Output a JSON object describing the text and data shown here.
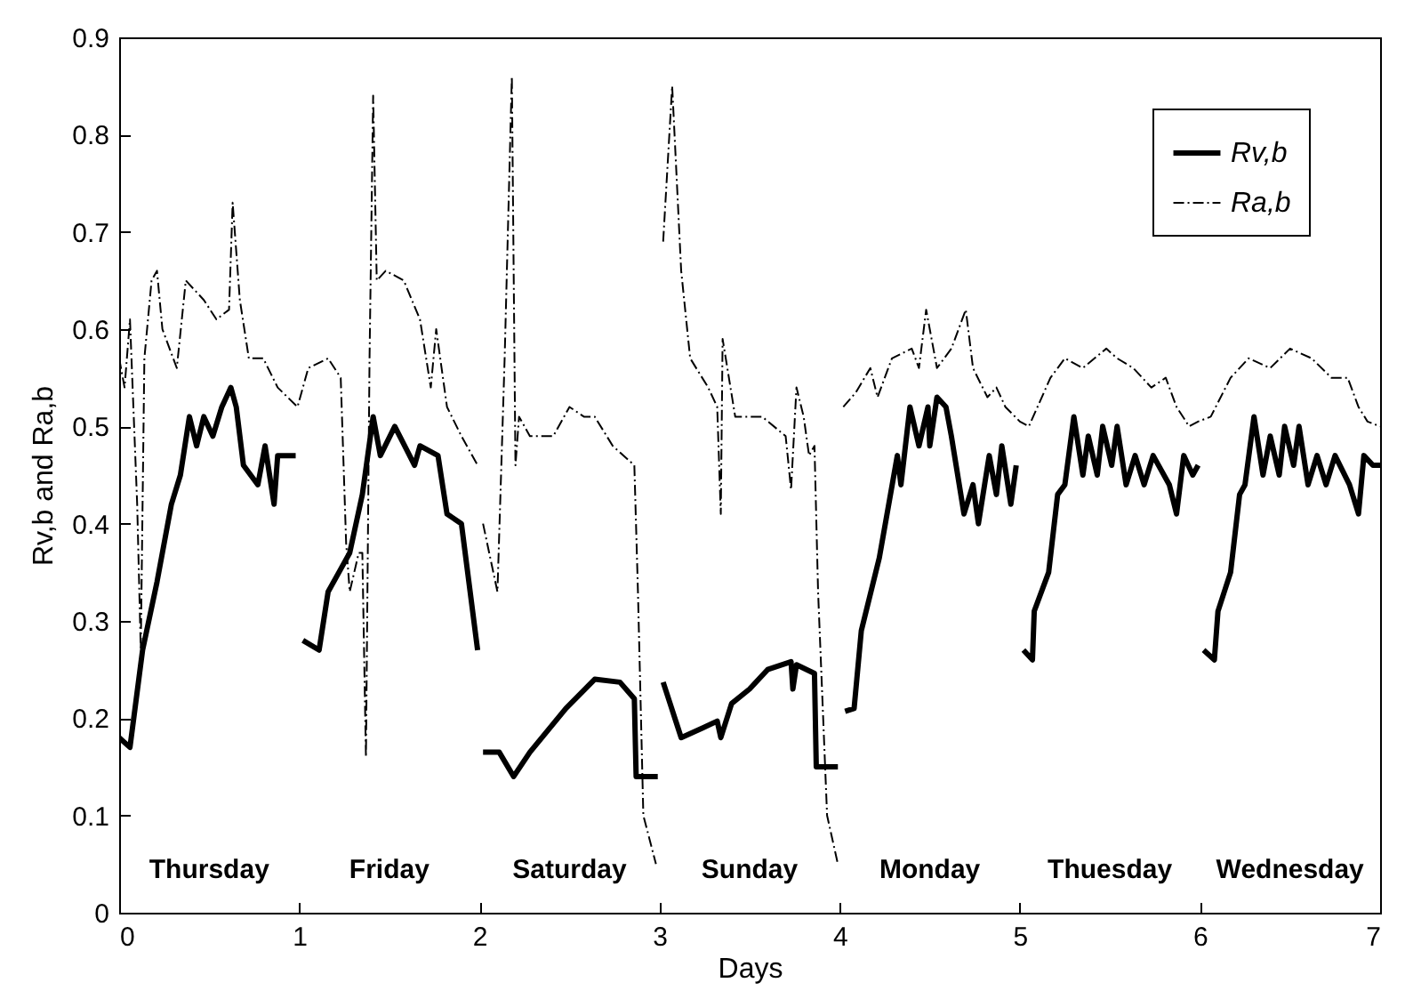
{
  "chart_data": {
    "type": "line",
    "xlabel": "Days",
    "ylabel": "Rv,b and Ra,b",
    "xlim": [
      0,
      7
    ],
    "ylim": [
      0,
      0.9
    ],
    "xticks": [
      0,
      1,
      2,
      3,
      4,
      5,
      6,
      7
    ],
    "yticks": [
      0,
      0.1,
      0.2,
      0.3,
      0.4,
      0.5,
      0.6,
      0.7,
      0.8,
      0.9
    ],
    "grid": false,
    "legend": "top right",
    "marker": "none",
    "annotations": [
      "Thursday",
      "Friday",
      "Saturday",
      "Sunday",
      "Monday",
      "Thuesday",
      "Wednesday"
    ],
    "series": [
      {
        "name": "Rv,b",
        "color": "#000000",
        "line_style": "solid",
        "x": [
          0,
          0.06,
          0.13,
          0.21,
          0.29,
          0.34,
          0.39,
          0.43,
          0.47,
          0.52,
          0.57,
          0.62,
          0.65,
          0.69,
          0.77,
          0.81,
          0.86,
          0.88,
          0.98,
          1.0,
          1.02,
          1.11,
          1.16,
          1.22,
          1.28,
          1.35,
          1.41,
          1.45,
          1.53,
          1.64,
          1.67,
          1.77,
          1.82,
          1.9,
          1.99,
          2.0,
          2.02,
          2.11,
          2.19,
          2.28,
          2.48,
          2.64,
          2.78,
          2.86,
          2.87,
          2.99,
          3.0,
          3.02,
          3.12,
          3.24,
          3.32,
          3.34,
          3.4,
          3.5,
          3.6,
          3.73,
          3.74,
          3.76,
          3.86,
          3.87,
          3.99,
          4.0,
          4.03,
          4.08,
          4.12,
          4.22,
          4.32,
          4.34,
          4.39,
          4.44,
          4.49,
          4.5,
          4.54,
          4.59,
          4.62,
          4.69,
          4.74,
          4.77,
          4.83,
          4.87,
          4.9,
          4.95,
          4.98,
          5.0,
          5.02,
          5.07,
          5.08,
          5.16,
          5.21,
          5.25,
          5.3,
          5.35,
          5.38,
          5.43,
          5.46,
          5.51,
          5.54,
          5.59,
          5.64,
          5.69,
          5.74,
          5.83,
          5.87,
          5.91,
          5.96,
          5.99,
          6.0,
          6.02,
          6.08,
          6.1,
          6.17,
          6.22,
          6.25,
          6.3,
          6.35,
          6.39,
          6.44,
          6.47,
          6.52,
          6.55,
          6.6,
          6.65,
          6.7,
          6.75,
          6.83,
          6.88,
          6.91,
          6.96,
          7.0
        ],
        "values": [
          0.18,
          0.17,
          0.27,
          0.34,
          0.42,
          0.45,
          0.51,
          0.48,
          0.51,
          0.49,
          0.52,
          0.54,
          0.52,
          0.46,
          0.44,
          0.48,
          0.42,
          0.47,
          0.47,
          null,
          0.28,
          0.27,
          0.33,
          0.35,
          0.37,
          0.43,
          0.51,
          0.47,
          0.5,
          0.46,
          0.48,
          0.47,
          0.41,
          0.4,
          0.27,
          null,
          0.165,
          0.165,
          0.14,
          0.165,
          0.21,
          0.24,
          0.237,
          0.22,
          0.14,
          0.14,
          null,
          0.237,
          0.18,
          0.19,
          0.197,
          0.18,
          0.215,
          0.23,
          0.25,
          0.258,
          0.23,
          0.255,
          0.246,
          0.15,
          0.15,
          null,
          0.207,
          0.21,
          0.29,
          0.365,
          0.47,
          0.44,
          0.52,
          0.48,
          0.52,
          0.48,
          0.53,
          0.52,
          0.49,
          0.41,
          0.44,
          0.4,
          0.47,
          0.43,
          0.48,
          0.42,
          0.46,
          null,
          0.27,
          0.26,
          0.31,
          0.35,
          0.43,
          0.44,
          0.51,
          0.45,
          0.49,
          0.45,
          0.5,
          0.46,
          0.5,
          0.44,
          0.47,
          0.44,
          0.47,
          0.44,
          0.41,
          0.47,
          0.45,
          0.46,
          null,
          0.27,
          0.26,
          0.31,
          0.35,
          0.43,
          0.44,
          0.51,
          0.45,
          0.49,
          0.45,
          0.5,
          0.46,
          0.5,
          0.44,
          0.47,
          0.44,
          0.47,
          0.44,
          0.41,
          0.47,
          0.46,
          0.46
        ]
      },
      {
        "name": "Ra,b",
        "color": "#000000",
        "line_style": "dashed",
        "x": [
          0,
          0.03,
          0.06,
          0.1,
          0.12,
          0.14,
          0.18,
          0.21,
          0.24,
          0.32,
          0.37,
          0.47,
          0.54,
          0.61,
          0.63,
          0.67,
          0.72,
          0.8,
          0.88,
          0.99,
          1.05,
          1.16,
          1.23,
          1.26,
          1.28,
          1.33,
          1.35,
          1.37,
          1.39,
          1.41,
          1.43,
          1.48,
          1.58,
          1.67,
          1.73,
          1.76,
          1.82,
          1.9,
          1.99,
          2.0,
          2.02,
          2.1,
          2.14,
          2.18,
          2.2,
          2.22,
          2.28,
          2.41,
          2.5,
          2.58,
          2.64,
          2.74,
          2.86,
          2.88,
          2.91,
          2.98,
          3.0,
          3.02,
          3.07,
          3.12,
          3.17,
          3.27,
          3.32,
          3.34,
          3.35,
          3.42,
          3.57,
          3.7,
          3.73,
          3.76,
          3.8,
          3.83,
          3.86,
          3.88,
          3.93,
          3.99,
          4.0,
          4.02,
          4.09,
          4.17,
          4.21,
          4.29,
          4.4,
          4.44,
          4.48,
          4.54,
          4.62,
          4.7,
          4.74,
          4.82,
          4.87,
          4.92,
          5.0,
          5.05,
          5.17,
          5.25,
          5.35,
          5.48,
          5.54,
          5.63,
          5.73,
          5.81,
          5.87,
          5.94,
          5.99,
          6.06,
          6.17,
          6.27,
          6.39,
          6.5,
          6.62,
          6.73,
          6.82,
          6.88,
          6.93,
          7.0
        ],
        "values": [
          0.57,
          0.54,
          0.61,
          0.42,
          0.27,
          0.57,
          0.65,
          0.66,
          0.6,
          0.56,
          0.65,
          0.63,
          0.61,
          0.62,
          0.73,
          0.63,
          0.57,
          0.57,
          0.54,
          0.52,
          0.56,
          0.57,
          0.55,
          0.38,
          0.33,
          0.37,
          0.37,
          0.16,
          0.57,
          0.84,
          0.65,
          0.66,
          0.65,
          0.61,
          0.54,
          0.6,
          0.52,
          0.49,
          0.46,
          null,
          0.4,
          0.33,
          0.57,
          0.86,
          0.46,
          0.51,
          0.49,
          0.49,
          0.52,
          0.51,
          0.51,
          0.48,
          0.46,
          0.33,
          0.1,
          0.05,
          null,
          0.69,
          0.85,
          0.66,
          0.57,
          0.54,
          0.52,
          0.41,
          0.59,
          0.51,
          0.51,
          0.49,
          0.435,
          0.54,
          0.51,
          0.47,
          0.48,
          0.33,
          0.1,
          0.05,
          null,
          0.52,
          0.535,
          0.56,
          0.53,
          0.57,
          0.58,
          0.56,
          0.62,
          0.56,
          0.58,
          0.62,
          0.56,
          0.53,
          0.54,
          0.52,
          0.505,
          0.5,
          0.55,
          0.57,
          0.56,
          0.58,
          0.57,
          0.56,
          0.54,
          0.55,
          0.52,
          0.5,
          0.505,
          0.51,
          0.55,
          0.57,
          0.56,
          0.58,
          0.57,
          0.55,
          0.55,
          0.52,
          0.505,
          0.5
        ]
      }
    ]
  }
}
